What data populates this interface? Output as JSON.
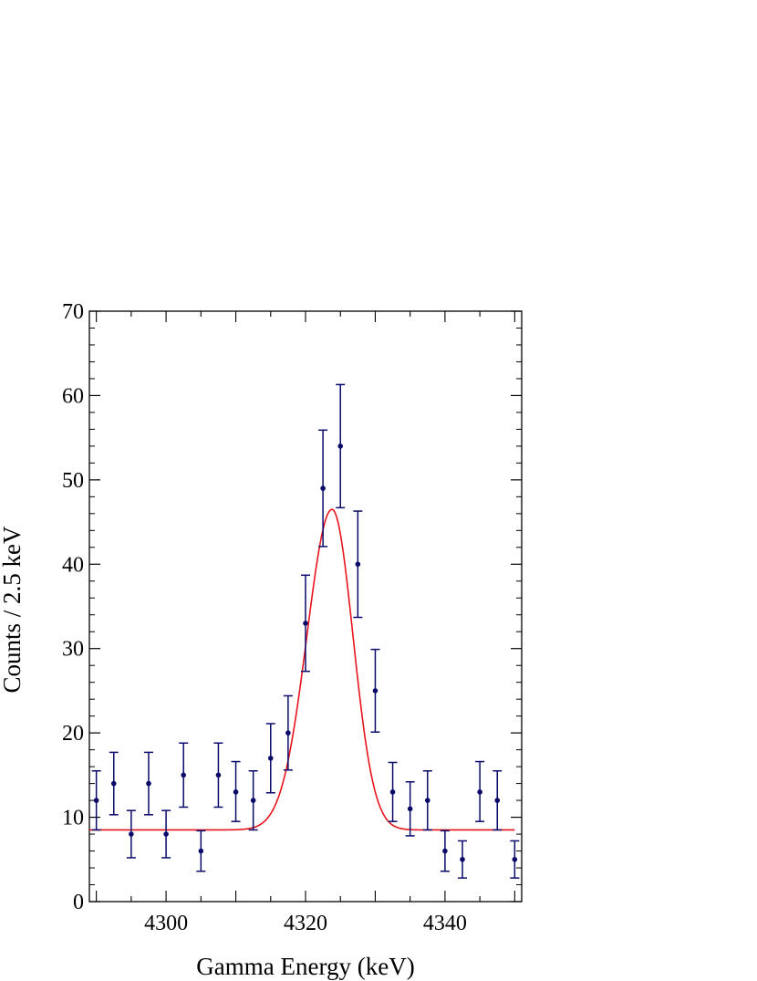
{
  "chart_data": {
    "type": "scatter",
    "xlabel": "Gamma Energy (keV)",
    "ylabel": "Counts / 2.5 keV",
    "xlim": [
      4289,
      4351
    ],
    "ylim": [
      0,
      70
    ],
    "x_ticks": [
      4300,
      4320,
      4340
    ],
    "y_ticks": [
      0,
      10,
      20,
      30,
      40,
      50,
      60,
      70
    ],
    "grid": false,
    "colors": {
      "points": "#0a0a6b",
      "fit": "#e8141c"
    },
    "series": [
      {
        "type": "points_with_errorbars",
        "x": [
          4290,
          4292.5,
          4295,
          4297.5,
          4300,
          4302.5,
          4305,
          4307.5,
          4310,
          4312.5,
          4315,
          4317.5,
          4320,
          4322.5,
          4325,
          4327.5,
          4330,
          4332.5,
          4335,
          4337.5,
          4340,
          4342.5,
          4345,
          4347.5,
          4350
        ],
        "y": [
          12,
          14,
          8,
          14,
          8,
          15,
          6,
          15,
          13,
          12,
          17,
          20,
          33,
          49,
          54,
          40,
          25,
          13,
          11,
          12,
          6,
          5,
          13,
          12,
          5
        ],
        "y_low": [
          8.5,
          10.3,
          5.2,
          10.3,
          5.2,
          11.2,
          3.6,
          11.2,
          9.5,
          8.5,
          12.9,
          15.6,
          27.3,
          42.1,
          46.7,
          33.7,
          20.1,
          9.5,
          7.8,
          8.5,
          3.6,
          2.8,
          9.5,
          8.5,
          2.8
        ],
        "y_high": [
          15.5,
          17.7,
          10.8,
          17.7,
          10.8,
          18.8,
          8.4,
          18.8,
          16.6,
          15.5,
          21.1,
          24.4,
          38.7,
          55.9,
          61.3,
          46.3,
          29.9,
          16.5,
          14.2,
          15.5,
          8.4,
          7.2,
          16.6,
          15.5,
          7.2
        ]
      },
      {
        "type": "fit_curve",
        "model": "gaussian_plus_constant",
        "baseline": 8.5,
        "amplitude": 38,
        "mean": 4323.8,
        "sigma_left": 3.6,
        "sigma_right": 3.0,
        "x_range": [
          4289,
          4350
        ]
      }
    ]
  }
}
